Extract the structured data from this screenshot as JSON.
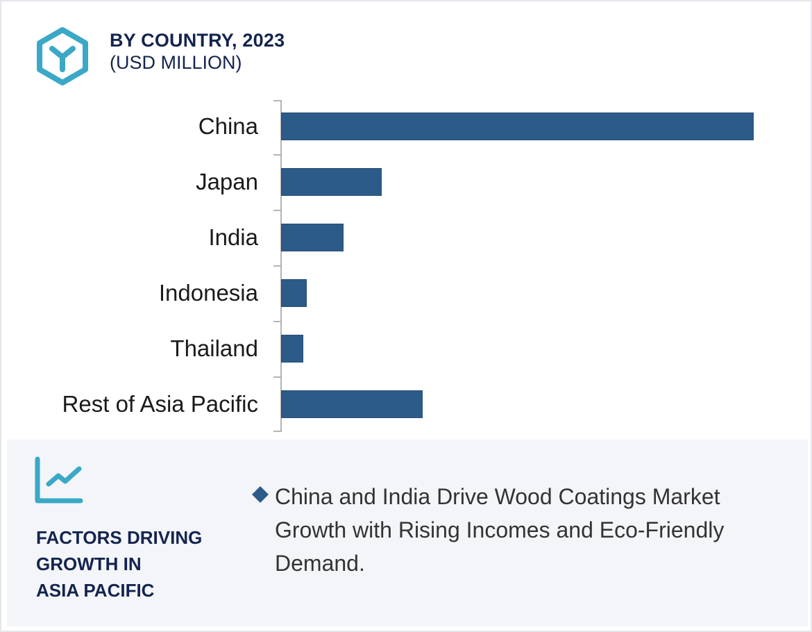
{
  "header": {
    "title": "BY COUNTRY, 2023",
    "subtitle": "(USD MILLION)",
    "icon": "hexagon-y-icon"
  },
  "chart_data": {
    "type": "bar",
    "orientation": "horizontal",
    "title": "BY COUNTRY, 2023",
    "subtitle": "(USD MILLION)",
    "xlabel": "",
    "ylabel": "",
    "unit": "USD Million (relative bar lengths; no numeric axis shown)",
    "categories": [
      "China",
      "Japan",
      "India",
      "Indonesia",
      "Thailand",
      "Rest of Asia Pacific"
    ],
    "values": [
      681,
      145,
      90,
      37,
      32,
      204
    ],
    "relative_share_of_max": [
      1.0,
      0.213,
      0.132,
      0.054,
      0.047,
      0.3
    ],
    "bar_color": "#2d5b89",
    "axis_color": "#b5b5b5",
    "grid": false,
    "legend": null,
    "value_labels_shown": false
  },
  "panel": {
    "icon": "trend-line-chart-icon",
    "title_lines": [
      "FACTORS DRIVING",
      "GROWTH IN",
      "ASIA PACIFIC"
    ],
    "bullets": [
      {
        "icon": "diamond-bullet-icon",
        "text": "China and India Drive Wood Coatings Market Growth with Rising Incomes and Eco-Friendly Demand."
      }
    ]
  },
  "colors": {
    "accent_teal": "#3aa8c6",
    "navy_text": "#14244f",
    "bar": "#2d5b89",
    "panel_bg": "#f3f5f9"
  }
}
